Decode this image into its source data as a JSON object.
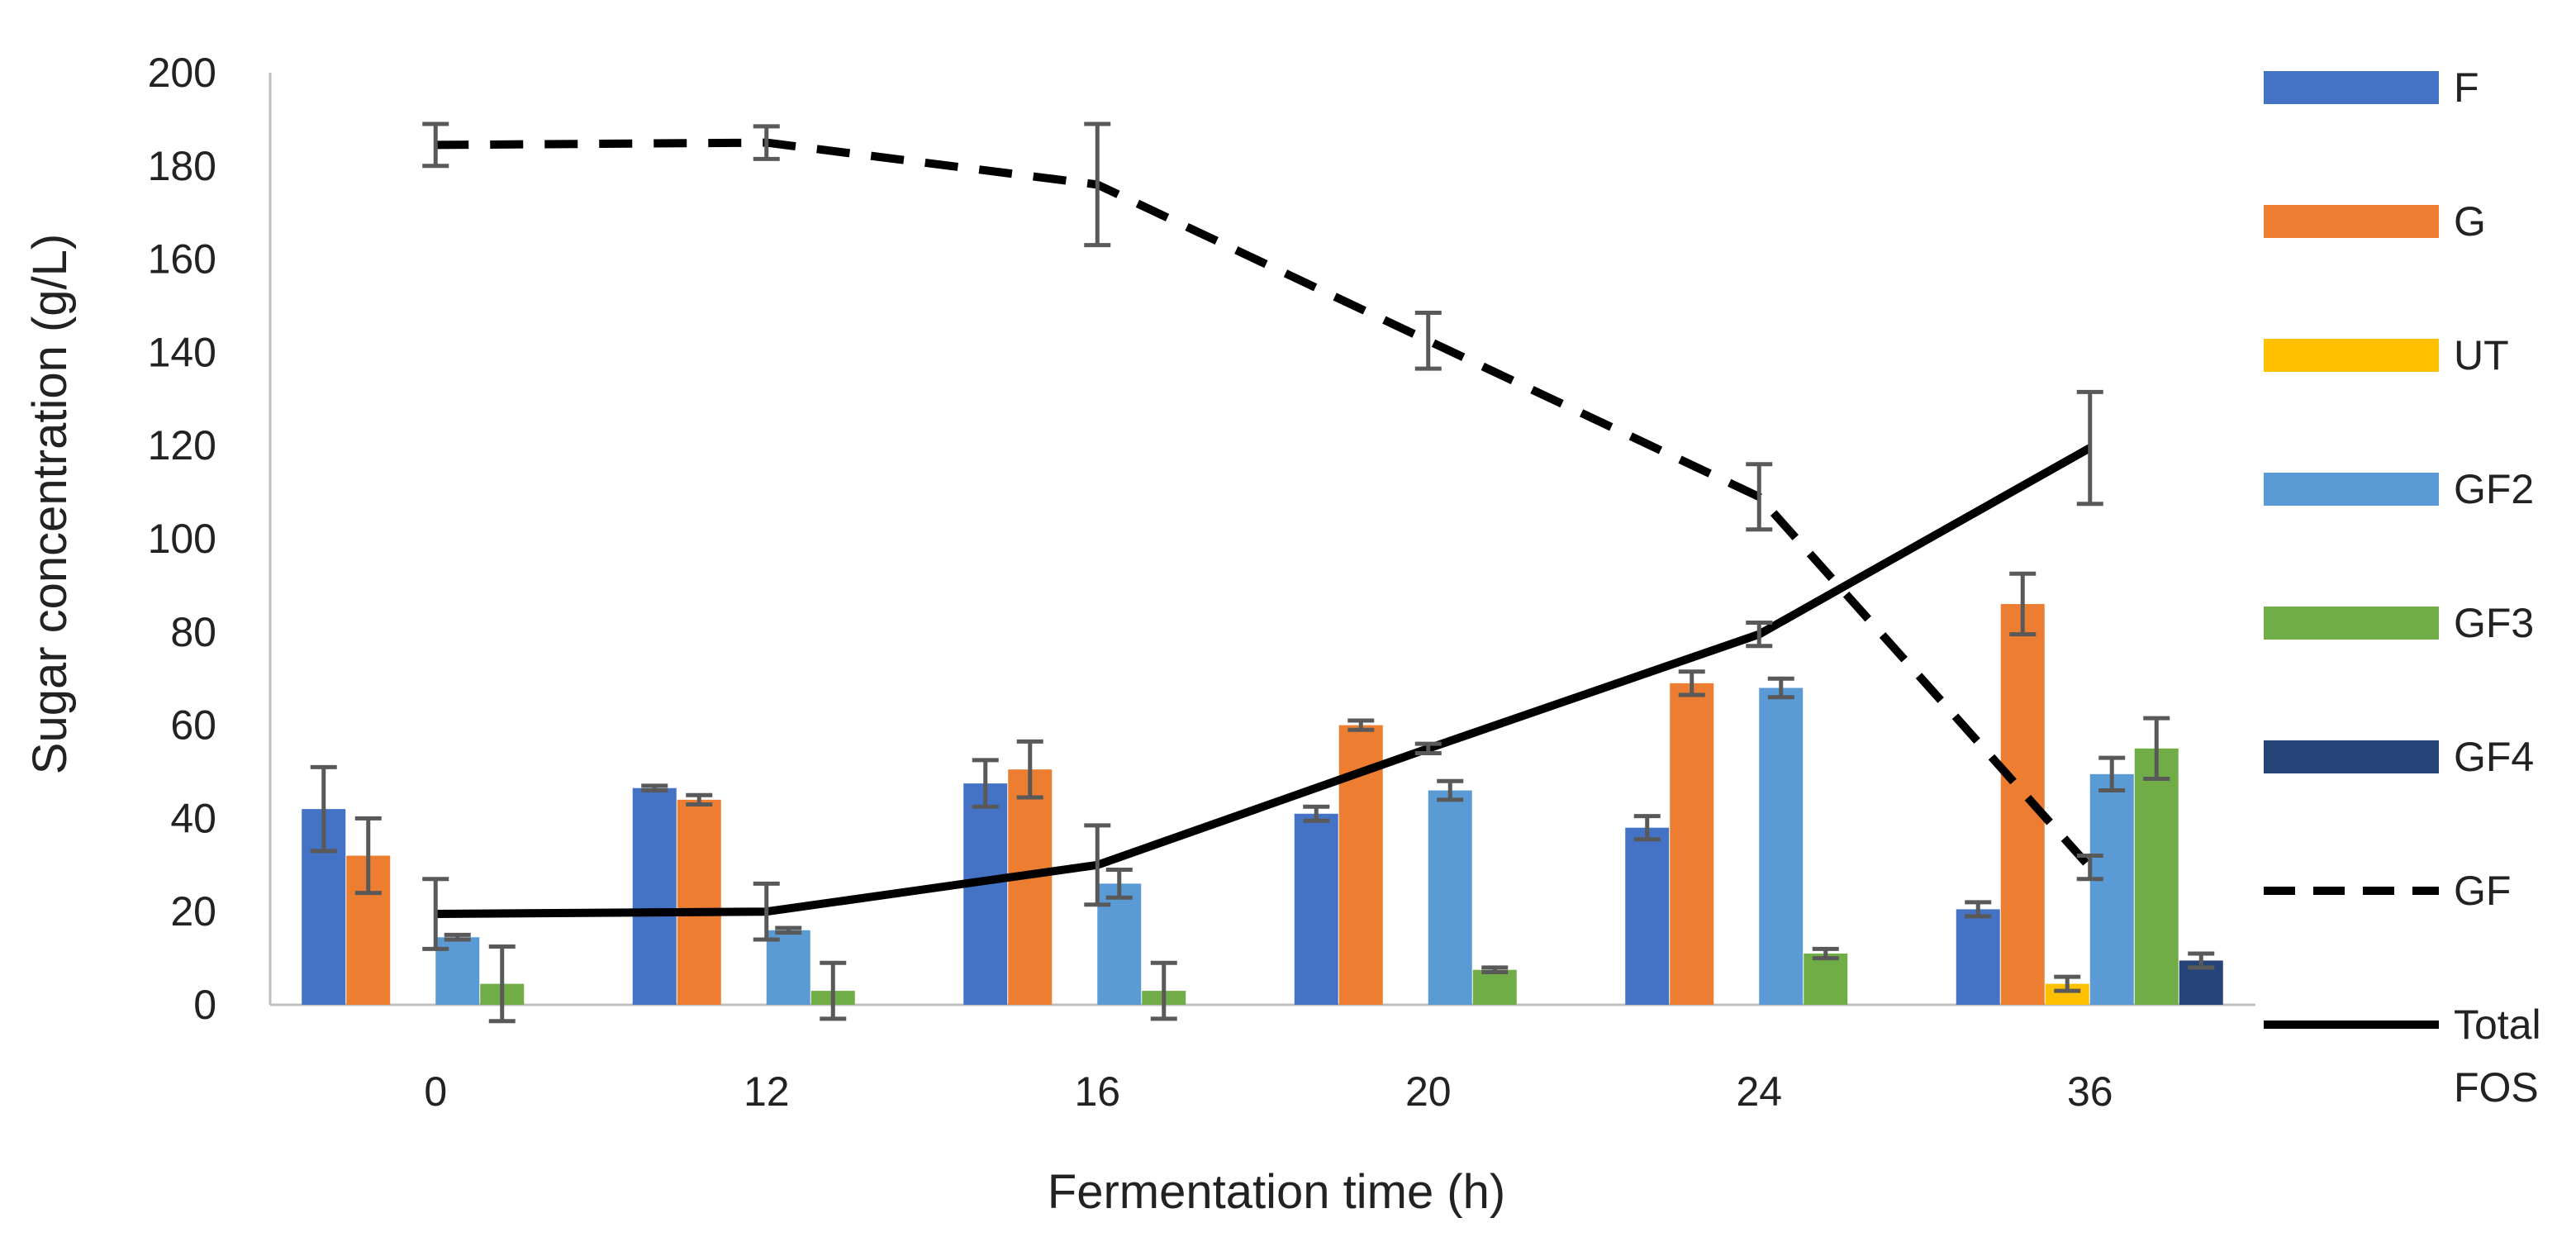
{
  "chart_data": {
    "type": "bar",
    "title": "",
    "xlabel": "Fermentation time (h)",
    "ylabel": "Sugar concentration (g/L)",
    "ylim": [
      0,
      200
    ],
    "yticks": [
      "0",
      "20",
      "40",
      "60",
      "80",
      "100",
      "120",
      "140",
      "160",
      "180",
      "200"
    ],
    "grid": false,
    "legend_position": "right",
    "categories": [
      "0",
      "12",
      "16",
      "20",
      "24",
      "36"
    ],
    "series": [
      {
        "name": "F",
        "kind": "bar",
        "color": "#4472C4",
        "values": [
          42,
          46.5,
          47.5,
          41,
          38,
          20.5
        ],
        "errors": [
          9,
          0.5,
          5,
          1.5,
          2.5,
          1.5
        ]
      },
      {
        "name": "G",
        "kind": "bar",
        "color": "#ED7D31",
        "values": [
          32,
          44,
          50.5,
          60,
          69,
          86
        ],
        "errors": [
          8,
          1,
          6,
          1,
          2.5,
          6.5
        ]
      },
      {
        "name": "UT",
        "kind": "bar",
        "color": "#FFC000",
        "values": [
          0,
          0,
          0,
          0,
          0,
          4.5
        ],
        "errors": [
          0,
          0,
          0,
          0,
          0,
          1.5
        ]
      },
      {
        "name": "GF2",
        "kind": "bar",
        "color": "#5B9BD5",
        "values": [
          14.5,
          16,
          26,
          46,
          68,
          49.5
        ],
        "errors": [
          0.5,
          0.5,
          3,
          2,
          2,
          3.5
        ]
      },
      {
        "name": "GF3",
        "kind": "bar",
        "color": "#70AD47",
        "values": [
          4.5,
          3,
          3,
          7.5,
          11,
          55
        ],
        "errors": [
          8,
          6,
          6,
          0.5,
          1,
          6.5
        ]
      },
      {
        "name": "GF4",
        "kind": "bar",
        "color": "#264478",
        "values": [
          0,
          0,
          0,
          0,
          0,
          9.5
        ],
        "errors": [
          0,
          0,
          0,
          0,
          0,
          1.5
        ]
      },
      {
        "name": "GF",
        "kind": "line",
        "dash": true,
        "color": "#000000",
        "values": [
          184.5,
          185,
          176,
          142.5,
          109,
          29.5
        ],
        "errors": [
          4.5,
          3.5,
          13,
          6,
          7,
          2.5
        ]
      },
      {
        "name": "Total FOS",
        "kind": "line",
        "dash": false,
        "color": "#000000",
        "values": [
          19.5,
          20,
          30,
          55,
          79.5,
          119.5
        ],
        "errors": [
          7.5,
          6,
          8.5,
          1,
          2.5,
          12
        ]
      }
    ],
    "legend": [
      "F",
      "G",
      "UT",
      "GF2",
      "GF3",
      "GF4",
      "GF",
      "Total FOS"
    ]
  }
}
